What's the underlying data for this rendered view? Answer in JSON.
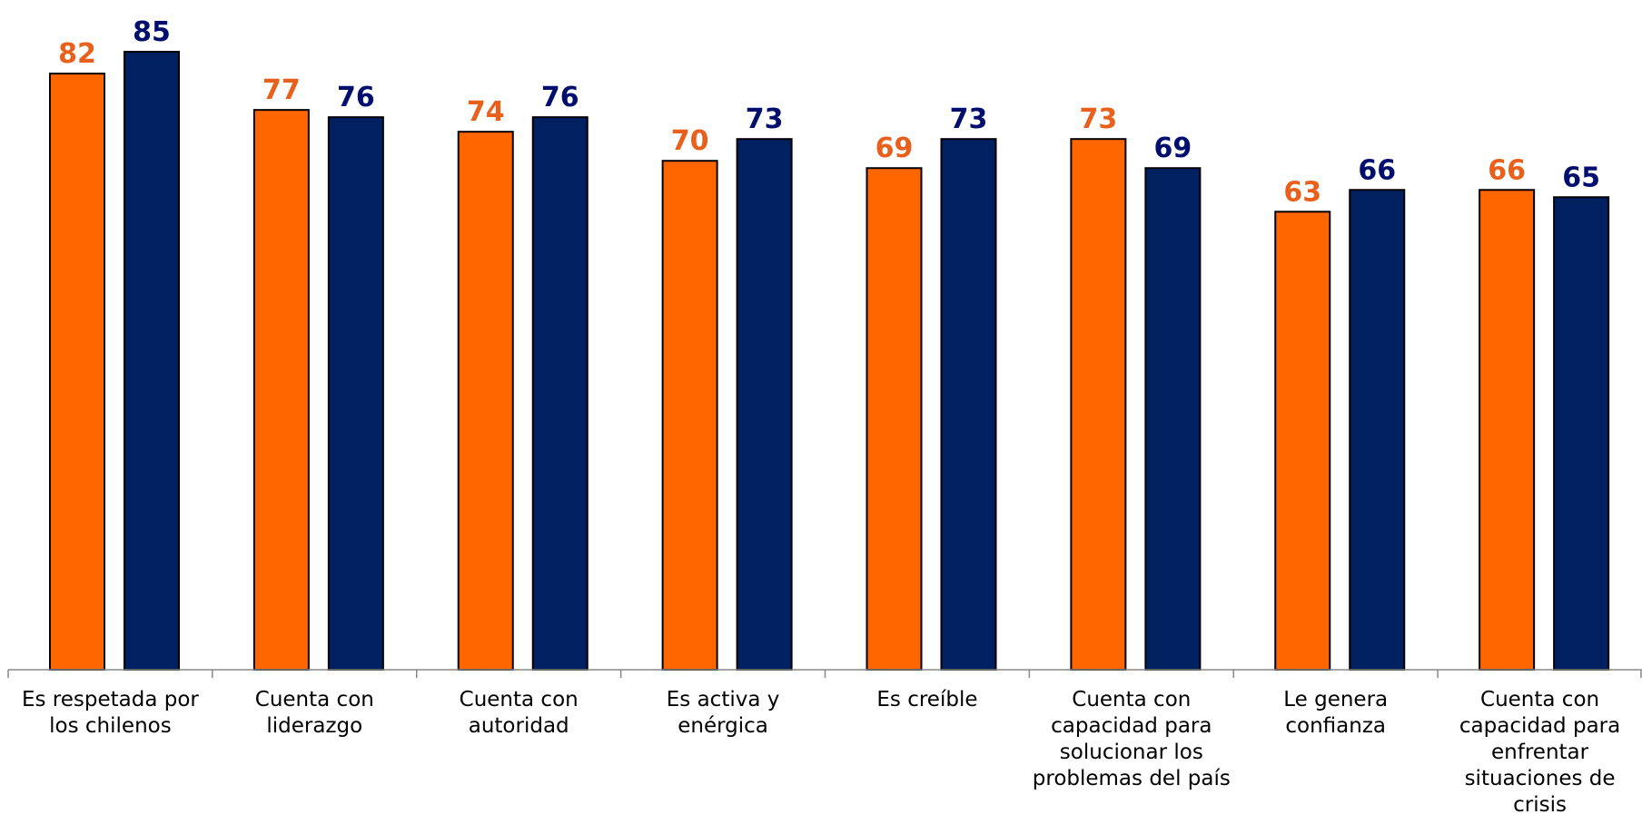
{
  "chart_data": {
    "type": "bar",
    "categories": [
      "Es respetada por los chilenos",
      "Cuenta con liderazgo",
      "Cuenta con autoridad",
      "Es activa y enérgica",
      "Es creíble",
      "Cuenta con capacidad para solucionar los problemas del país",
      "Le genera confianza",
      "Cuenta con capacidad para enfrentar situaciones de crisis"
    ],
    "series": [
      {
        "color": "#ff6600",
        "values": [
          82,
          77,
          74,
          70,
          69,
          73,
          63,
          66
        ]
      },
      {
        "color": "#002060",
        "values": [
          85,
          76,
          76,
          73,
          73,
          69,
          66,
          65
        ]
      }
    ],
    "ylim": [
      0,
      90
    ]
  }
}
